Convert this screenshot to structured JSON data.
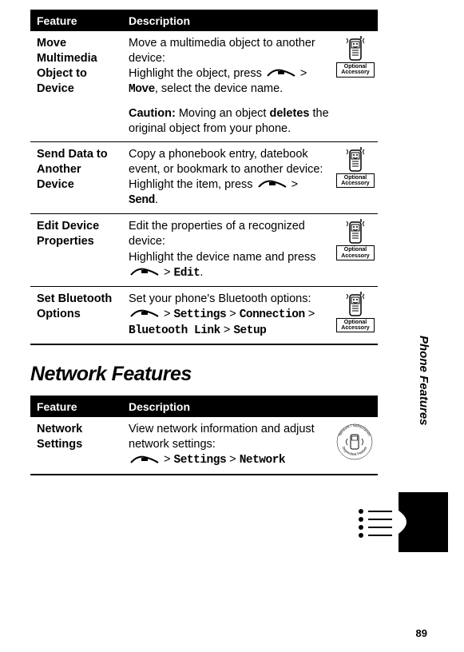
{
  "tables": {
    "top": {
      "headers": {
        "feature": "Feature",
        "description": "Description"
      },
      "badge_label": "Optional Accessory",
      "rows": [
        {
          "feature": "Move Multimedia Object to Device",
          "desc_pre": "Move a multimedia object to another device:\nHighlight the object, press ",
          "menu1": "Move",
          "desc_mid": ", select the device name.",
          "caution_label": "Caution:",
          "caution_pre": " Moving an object ",
          "deletes": "deletes",
          "caution_post": " the original object from your phone.",
          "has_badge": true
        },
        {
          "feature": "Send Data to Another Device",
          "desc_pre": "Copy a phonebook entry, datebook event, or bookmark to another device:\nHighlight the item, press ",
          "menu1": "Send",
          "desc_mid": ".",
          "has_badge": true
        },
        {
          "feature": "Edit Device Properties",
          "desc_pre": "Edit the properties of a recognized device:\nHighlight the device name and press ",
          "menu1": "Edit",
          "desc_mid": ".",
          "has_badge": true
        },
        {
          "feature": "Set Bluetooth Options",
          "desc_pre": "Set your phone's Bluetooth options:\n",
          "path": [
            "Settings",
            "Connection",
            "Bluetooth Link",
            "Setup"
          ],
          "has_badge": true
        }
      ]
    },
    "bottom": {
      "headers": {
        "feature": "Feature",
        "description": "Description"
      },
      "rows": [
        {
          "feature": "Network Settings",
          "desc_pre": "View network information and adjust network settings:\n",
          "path": [
            "Settings",
            "Network"
          ],
          "has_sub_badge": true
        }
      ]
    }
  },
  "section_title": "Network Features",
  "side_label": "Phone Features",
  "sub_badge": {
    "top": "Network / Subscription",
    "bottom": "Dependent Feature"
  },
  "page_number": "89",
  "colors": {
    "text": "#000000",
    "header_bg": "#000000",
    "header_fg": "#ffffff",
    "page_bg": "#ffffff"
  },
  "fonts": {
    "body_size": 14.5,
    "header_size": 14,
    "section_size": 25
  }
}
